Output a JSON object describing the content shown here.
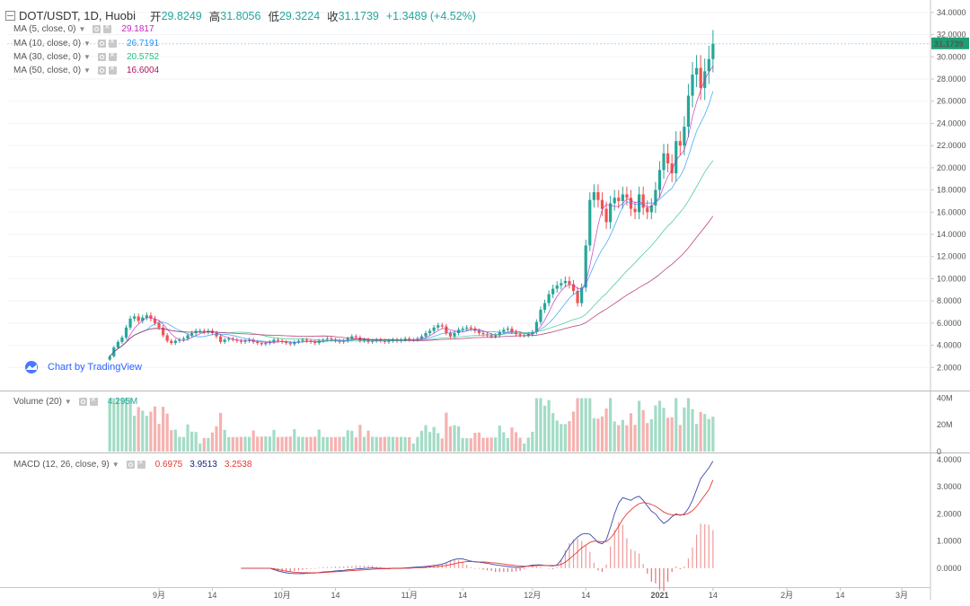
{
  "header": {
    "symbol": "DOT/USDT, 1D, Huobi",
    "open_label": "开",
    "open": "29.8249",
    "high_label": "高",
    "high": "31.8056",
    "low_label": "低",
    "low": "29.3224",
    "close_label": "收",
    "close": "31.1739",
    "change": "+1.3489 (+4.52%)"
  },
  "indicators": [
    {
      "label": "MA (5, close, 0)",
      "value": "29.1817",
      "color": "#c724c0"
    },
    {
      "label": "MA (10, close, 0)",
      "value": "26.7191",
      "color": "#2196f3"
    },
    {
      "label": "MA (30, close, 0)",
      "value": "20.5752",
      "color": "#26c281"
    },
    {
      "label": "MA (50, close, 0)",
      "value": "16.6004",
      "color": "#b0125f"
    }
  ],
  "volume_indicator": {
    "label": "Volume (20)",
    "value": "4.295M"
  },
  "macd_indicator": {
    "label": "MACD (12, 26, close, 9)",
    "hist": "0.6975",
    "macd": "3.9513",
    "signal": "3.2538"
  },
  "branding": "Chart by TradingView",
  "colors": {
    "up": "#26a69a",
    "down": "#ef5350",
    "vol_up": "#a3dcc6",
    "vol_down": "#f5b2b0",
    "macd_line": "#3949ab",
    "signal_line": "#e53935",
    "grid": "#f0f3fa",
    "last_price_bg": "#1e9e74"
  },
  "chart_data": [
    {
      "type": "candlestick",
      "title": "DOT/USDT, 1D, Huobi",
      "last_price": "31.1739",
      "y_ticks": [
        "2.0000",
        "4.0000",
        "6.0000",
        "8.0000",
        "10.0000",
        "12.0000",
        "14.0000",
        "16.0000",
        "18.0000",
        "20.0000",
        "22.0000",
        "24.0000",
        "26.0000",
        "28.0000",
        "30.0000",
        "32.0000",
        "34.0000"
      ],
      "ylim": [
        0,
        34.8
      ],
      "x_ticks": [
        {
          "label": "9月",
          "day": 12
        },
        {
          "label": "14",
          "day": 25
        },
        {
          "label": "10月",
          "day": 42
        },
        {
          "label": "14",
          "day": 55
        },
        {
          "label": "11月",
          "day": 73
        },
        {
          "label": "14",
          "day": 86
        },
        {
          "label": "12月",
          "day": 103
        },
        {
          "label": "14",
          "day": 116
        },
        {
          "label": "2021",
          "day": 134
        },
        {
          "label": "14",
          "day": 147
        },
        {
          "label": "2月",
          "day": 165
        },
        {
          "label": "14",
          "day": 178
        },
        {
          "label": "3月",
          "day": 193
        }
      ],
      "xlim": [
        -25,
        200
      ],
      "closes": [
        3.0,
        3.8,
        4.3,
        4.7,
        5.6,
        6.4,
        6.6,
        6.2,
        6.5,
        6.7,
        6.4,
        6.0,
        5.6,
        4.9,
        4.4,
        4.2,
        4.4,
        4.5,
        4.6,
        4.9,
        5.1,
        5.3,
        5.3,
        5.2,
        5.3,
        5.1,
        4.8,
        4.3,
        4.5,
        4.6,
        4.5,
        4.4,
        4.3,
        4.4,
        4.5,
        4.3,
        4.2,
        4.1,
        4.2,
        4.3,
        4.5,
        4.4,
        4.3,
        4.2,
        4.1,
        4.3,
        4.4,
        4.5,
        4.4,
        4.3,
        4.2,
        4.4,
        4.5,
        4.6,
        4.5,
        4.4,
        4.3,
        4.4,
        4.6,
        4.8,
        4.7,
        4.4,
        4.5,
        4.3,
        4.4,
        4.5,
        4.4,
        4.3,
        4.4,
        4.5,
        4.4,
        4.5,
        4.6,
        4.5,
        4.5,
        4.6,
        4.8,
        5.1,
        5.3,
        5.6,
        5.8,
        5.7,
        5.1,
        4.8,
        5.1,
        5.4,
        5.5,
        5.6,
        5.5,
        5.3,
        5.1,
        5.0,
        4.9,
        4.8,
        4.9,
        5.2,
        5.4,
        5.5,
        5.2,
        5.0,
        4.9,
        4.9,
        5.0,
        5.2,
        6.1,
        7.2,
        7.8,
        8.6,
        9.1,
        9.4,
        9.6,
        9.8,
        9.5,
        8.9,
        7.8,
        9.2,
        13.0,
        17.1,
        17.8,
        17.1,
        16.3,
        15.1,
        16.8,
        17.3,
        17.0,
        17.6,
        17.3,
        16.3,
        16.0,
        17.6,
        16.4,
        16.0,
        16.6,
        18.0,
        19.8,
        21.3,
        20.4,
        19.5,
        22.4,
        22.0,
        23.7,
        26.5,
        28.4,
        29.0,
        27.2,
        28.7,
        29.8,
        31.17
      ],
      "macd": [
        0.0,
        0.0,
        0.0,
        0.0,
        0.0,
        0.0,
        0.0,
        0.0,
        -0.05,
        -0.1,
        -0.14,
        -0.17,
        -0.19,
        -0.2,
        -0.2,
        -0.2,
        -0.19,
        -0.18,
        -0.18,
        -0.16,
        -0.14,
        -0.13,
        -0.12,
        -0.1,
        -0.09,
        -0.08,
        -0.06,
        -0.05,
        -0.03,
        -0.02,
        -0.01,
        0.0,
        0.01,
        0.0,
        0.0,
        -0.01,
        -0.01,
        0.0,
        0.0,
        0.0,
        0.01,
        0.02,
        0.03,
        0.04,
        0.05,
        0.06,
        0.08,
        0.1,
        0.12,
        0.15,
        0.2,
        0.27,
        0.32,
        0.35,
        0.34,
        0.3,
        0.26,
        0.23,
        0.22,
        0.2,
        0.18,
        0.15,
        0.12,
        0.1,
        0.08,
        0.06,
        0.04,
        0.03,
        0.03,
        0.05,
        0.08,
        0.11,
        0.12,
        0.12,
        0.1,
        0.09,
        0.08,
        0.12,
        0.3,
        0.55,
        0.8,
        1.0,
        1.15,
        1.25,
        1.28,
        1.25,
        1.1,
        0.95,
        0.9,
        1.05,
        1.5,
        2.0,
        2.4,
        2.6,
        2.55,
        2.5,
        2.6,
        2.65,
        2.5,
        2.3,
        2.1,
        2.0,
        1.8,
        1.65,
        1.75,
        1.9,
        2.0,
        1.95,
        2.0,
        2.2,
        2.5,
        2.9,
        3.3,
        3.5,
        3.7,
        3.95
      ],
      "signal": [
        0.0,
        0.0,
        0.0,
        0.0,
        0.0,
        0.0,
        0.0,
        0.0,
        -0.02,
        -0.05,
        -0.08,
        -0.11,
        -0.13,
        -0.15,
        -0.16,
        -0.17,
        -0.17,
        -0.17,
        -0.17,
        -0.17,
        -0.16,
        -0.15,
        -0.14,
        -0.13,
        -0.12,
        -0.11,
        -0.1,
        -0.09,
        -0.08,
        -0.07,
        -0.06,
        -0.05,
        -0.04,
        -0.03,
        -0.02,
        -0.02,
        -0.02,
        -0.01,
        -0.01,
        -0.01,
        0.0,
        0.0,
        0.01,
        0.02,
        0.02,
        0.03,
        0.04,
        0.05,
        0.06,
        0.08,
        0.1,
        0.13,
        0.16,
        0.2,
        0.22,
        0.24,
        0.24,
        0.24,
        0.23,
        0.23,
        0.22,
        0.2,
        0.19,
        0.17,
        0.15,
        0.13,
        0.11,
        0.09,
        0.08,
        0.07,
        0.07,
        0.08,
        0.09,
        0.1,
        0.1,
        0.1,
        0.1,
        0.1,
        0.14,
        0.22,
        0.34,
        0.47,
        0.6,
        0.75,
        0.85,
        0.95,
        1.0,
        0.99,
        0.97,
        0.98,
        1.1,
        1.3,
        1.55,
        1.8,
        2.0,
        2.15,
        2.28,
        2.38,
        2.42,
        2.4,
        2.35,
        2.28,
        2.18,
        2.07,
        2.0,
        1.97,
        1.97,
        1.97,
        1.97,
        2.02,
        2.12,
        2.28,
        2.48,
        2.69,
        2.9,
        3.25
      ],
      "volume_ticks": [
        "0",
        "20M",
        "40M"
      ],
      "volume_max": 43
    }
  ]
}
